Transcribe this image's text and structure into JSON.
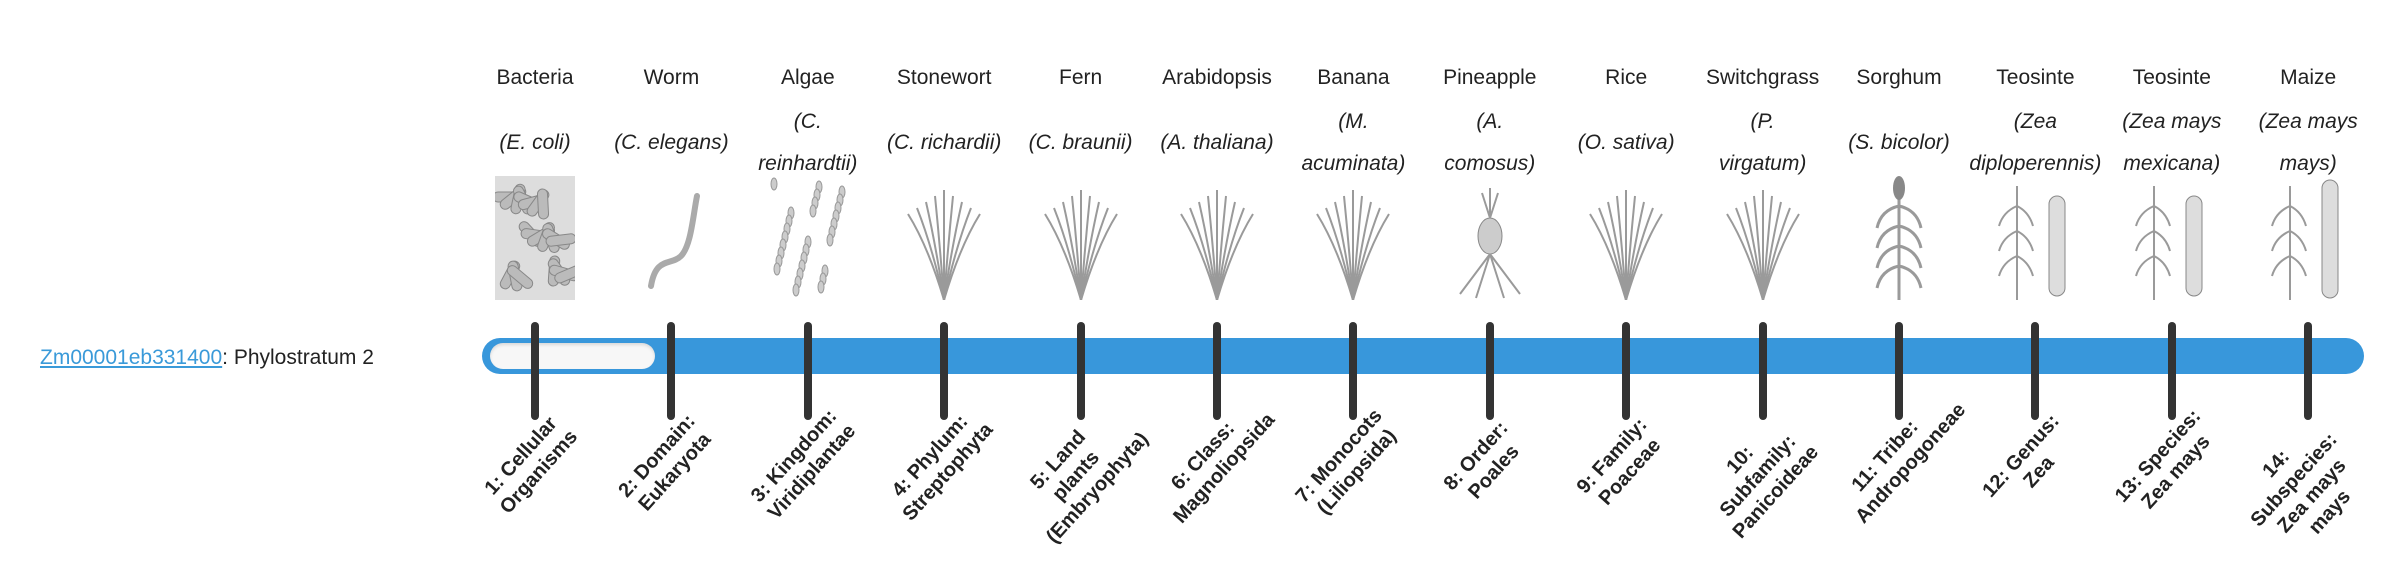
{
  "gene": {
    "id": "Zm00001eb331400",
    "suffix": ": Phylostratum 2"
  },
  "progress": {
    "phylostratum": 2,
    "total": 14
  },
  "colors": {
    "bar": "#3897db",
    "link": "#3a9ad9",
    "tick": "#333333"
  },
  "organisms": [
    {
      "common": "Bacteria",
      "sci": [
        "(E. coli)"
      ],
      "icon": "bacteria-icon",
      "stratum": "1: Cellular Organisms"
    },
    {
      "common": "Worm",
      "sci": [
        "(C. elegans)"
      ],
      "icon": "worm-icon",
      "stratum": "2: Domain: Eukaryota"
    },
    {
      "common": "Algae",
      "sci": [
        "(C.",
        "reinhardtii)"
      ],
      "icon": "algae-icon",
      "stratum": "3: Kingdom: Viridiplantae"
    },
    {
      "common": "Stonewort",
      "sci": [
        "(C. richardii)"
      ],
      "icon": "stonewort-icon",
      "stratum": "4: Phylum: Streptophyta"
    },
    {
      "common": "Fern",
      "sci": [
        "(C. braunii)"
      ],
      "icon": "fern-icon",
      "stratum": "5: Land plants (Embryophyta)"
    },
    {
      "common": "Arabidopsis",
      "sci": [
        "(A. thaliana)"
      ],
      "icon": "arabidopsis-icon",
      "stratum": "6: Class: Magnoliopsida"
    },
    {
      "common": "Banana",
      "sci": [
        "(M.",
        "acuminata)"
      ],
      "icon": "banana-icon",
      "stratum": "7: Monocots (Liliopsida)"
    },
    {
      "common": "Pineapple",
      "sci": [
        "(A.",
        "comosus)"
      ],
      "icon": "pineapple-icon",
      "stratum": "8: Order: Poales"
    },
    {
      "common": "Rice",
      "sci": [
        "(O. sativa)"
      ],
      "icon": "rice-icon",
      "stratum": "9: Family: Poaceae"
    },
    {
      "common": "Switchgrass",
      "sci": [
        "(P.",
        "virgatum)"
      ],
      "icon": "switchgrass-icon",
      "stratum": "10: Subfamily: Panicoideae"
    },
    {
      "common": "Sorghum",
      "sci": [
        "(S. bicolor)"
      ],
      "icon": "sorghum-icon",
      "stratum": "11: Tribe: Andropogoneae"
    },
    {
      "common": "Teosinte",
      "sci": [
        "(Zea",
        "diploperennis)"
      ],
      "icon": "teosinte-icon",
      "stratum": "12: Genus: Zea"
    },
    {
      "common": "Teosinte",
      "sci": [
        "(Zea mays",
        "mexicana)"
      ],
      "icon": "teosinte-icon",
      "stratum": "13: Species: Zea mays"
    },
    {
      "common": "Maize",
      "sci": [
        "(Zea mays",
        "mays)"
      ],
      "icon": "maize-icon",
      "stratum": "14: Subspecies: Zea mays mays"
    }
  ]
}
